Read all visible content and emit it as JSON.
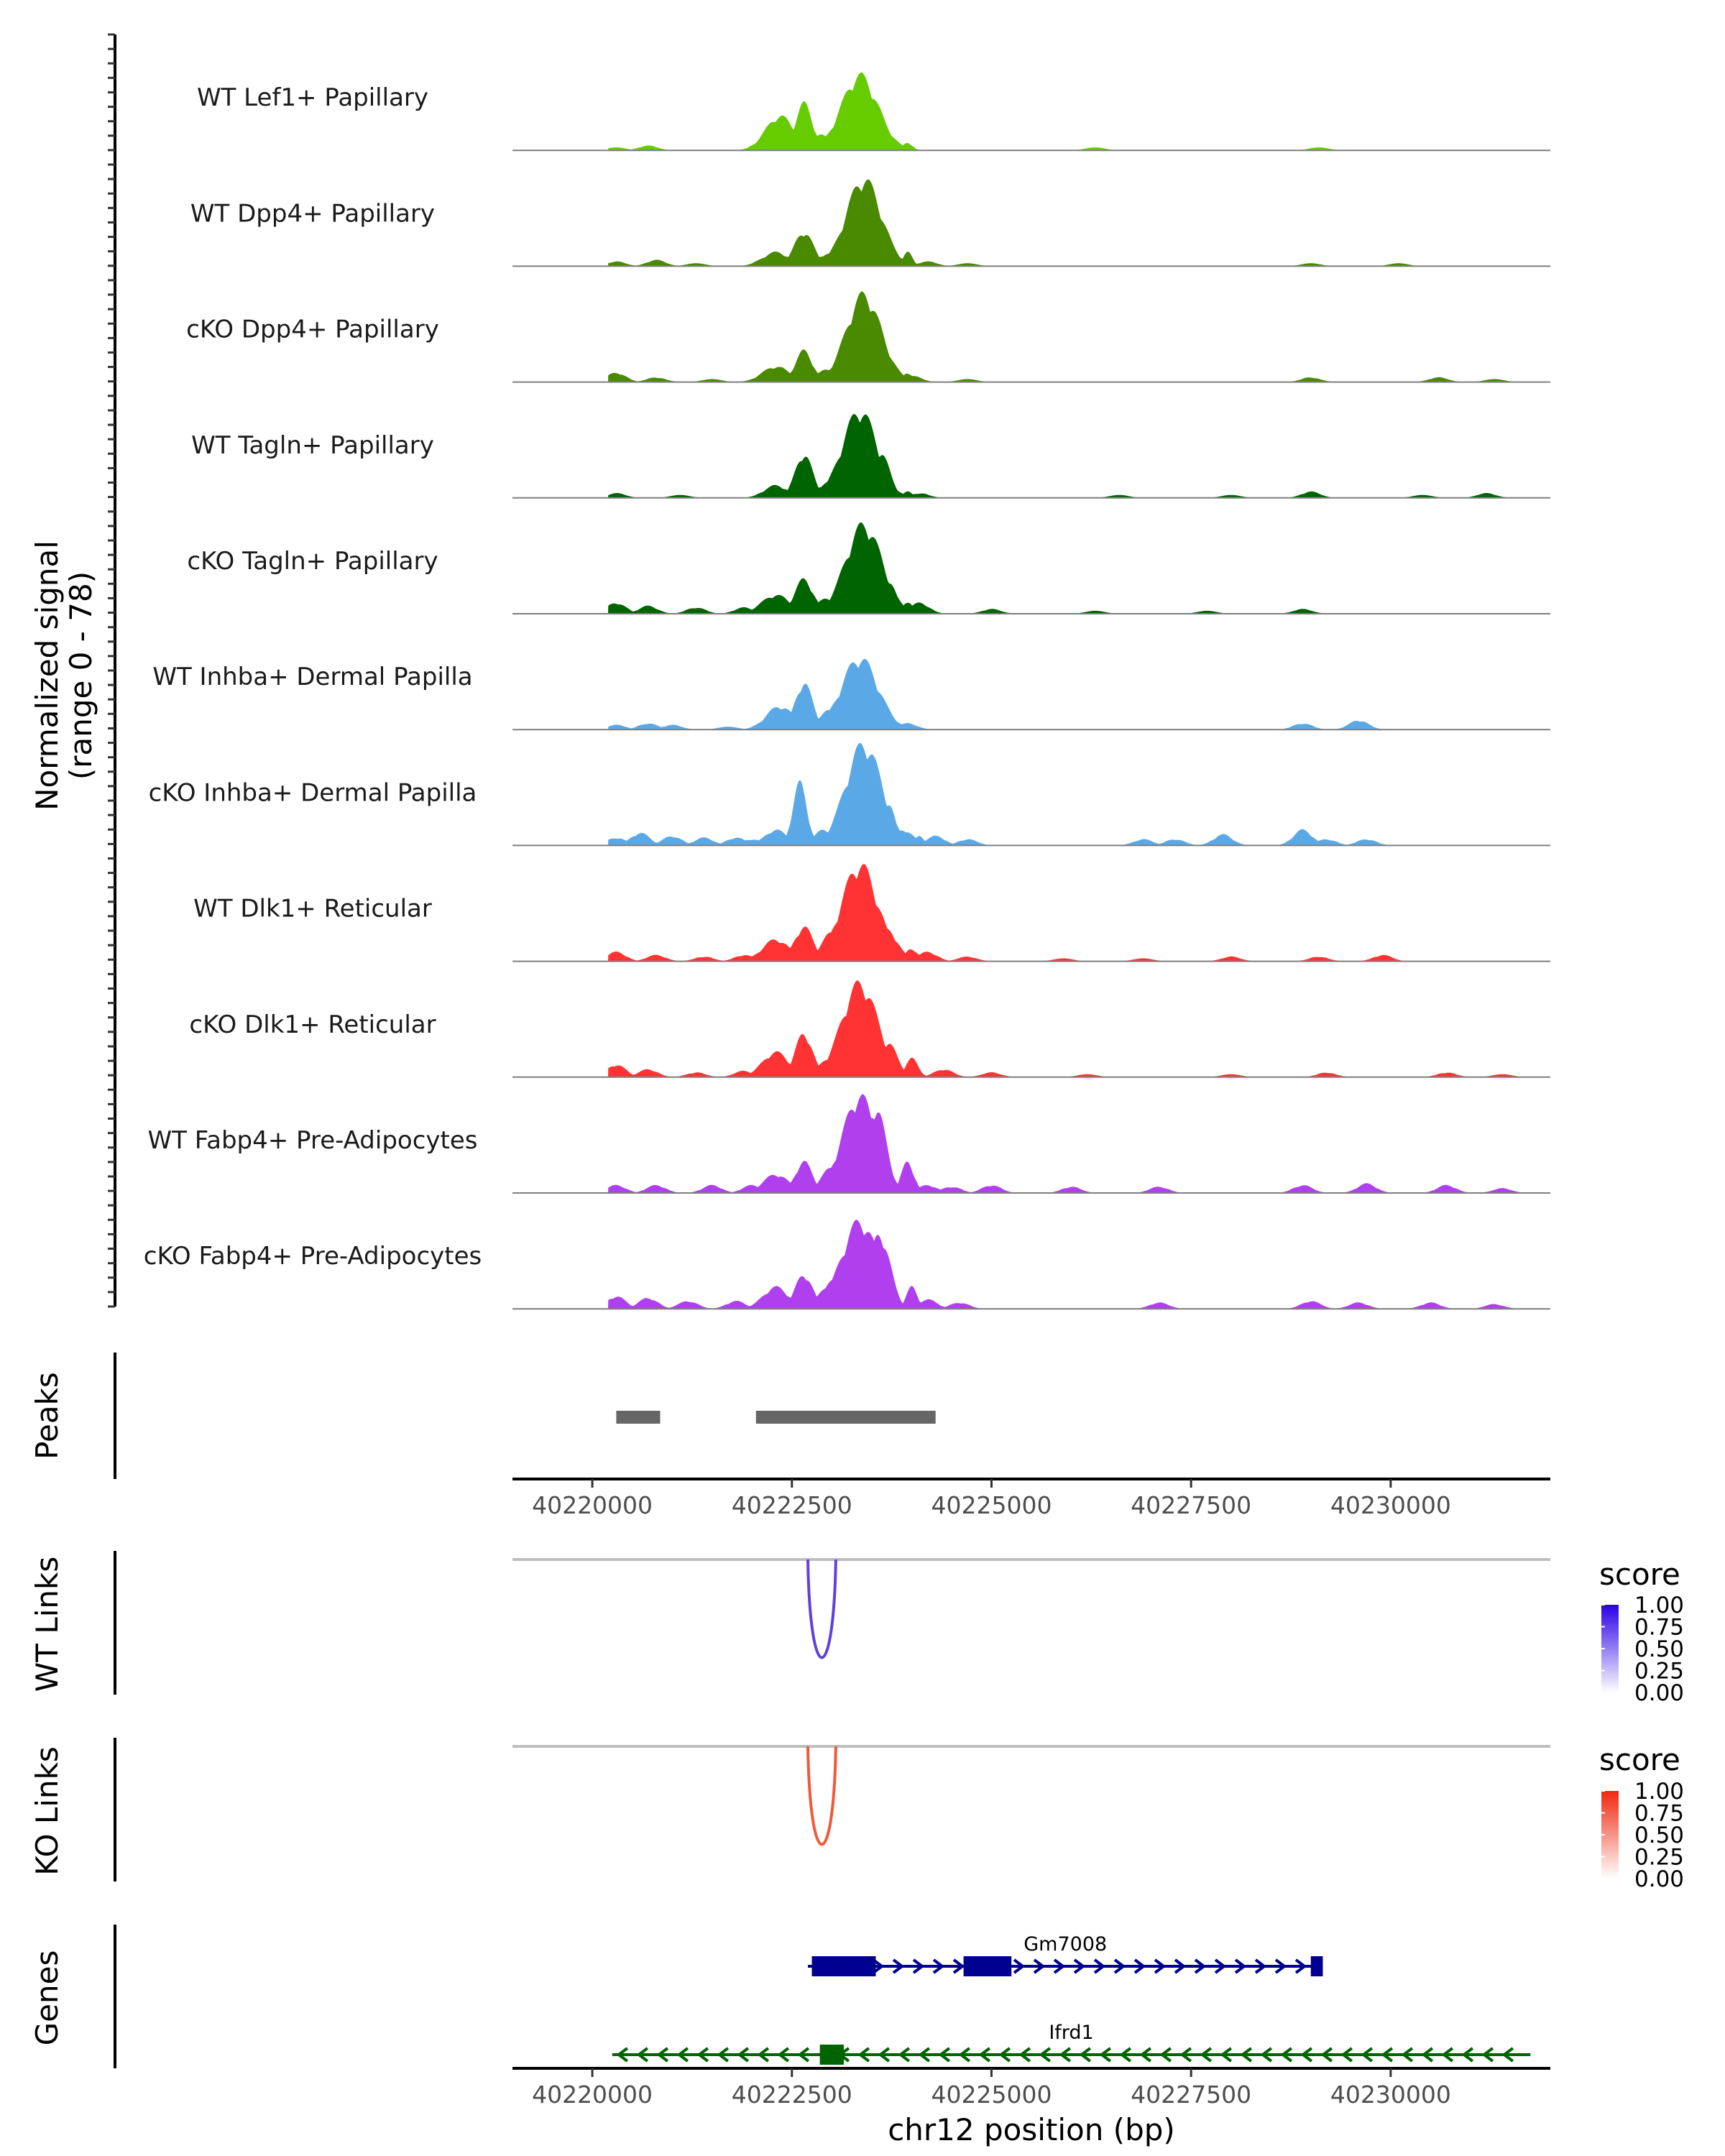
{
  "chart_data": {
    "type": "area",
    "title": "",
    "chromosome": "chr12",
    "xlabel": "chr12 position (bp)",
    "xlim": [
      40219000,
      40232000
    ],
    "x_ticks": [
      40220000,
      40222500,
      40225000,
      40227500,
      40230000
    ],
    "x_tick_labels": [
      "40220000",
      "40222500",
      "40225000",
      "40227500",
      "40230000"
    ],
    "signal": {
      "ylabel_line1": "Normalized signal",
      "ylabel_line2": "(range 0 - 78)",
      "ylim": [
        0,
        78
      ],
      "tracks": [
        {
          "name": "WT Lef1+ Papillary",
          "color": "#66CC00",
          "baseline": [
            [
              40220300,
              2
            ],
            [
              40220700,
              3
            ],
            [
              40226300,
              2
            ],
            [
              40229100,
              2
            ]
          ],
          "peaks": [
            [
              40222350,
              180,
              22
            ],
            [
              40222650,
              110,
              30
            ],
            [
              40222850,
              130,
              10
            ],
            [
              40223350,
              230,
              48
            ],
            [
              40223950,
              60,
              5
            ]
          ]
        },
        {
          "name": "WT Dpp4+ Papillary",
          "color": "#4A8A00",
          "baseline": [
            [
              40220300,
              3
            ],
            [
              40220800,
              4
            ],
            [
              40221300,
              2
            ],
            [
              40224200,
              3
            ],
            [
              40224700,
              2
            ],
            [
              40229000,
              2
            ],
            [
              40230100,
              2
            ]
          ],
          "peaks": [
            [
              40222300,
              170,
              9
            ],
            [
              40222650,
              120,
              22
            ],
            [
              40222950,
              140,
              8
            ],
            [
              40223400,
              220,
              56
            ],
            [
              40223650,
              100,
              22
            ],
            [
              40223950,
              60,
              9
            ]
          ]
        },
        {
          "name": "cKO Dpp4+ Papillary",
          "color": "#4A8A00",
          "baseline": [
            [
              40220300,
              6
            ],
            [
              40220800,
              3
            ],
            [
              40221500,
              2
            ],
            [
              40224000,
              4
            ],
            [
              40224700,
              2
            ],
            [
              40229000,
              3
            ],
            [
              40230600,
              3
            ],
            [
              40231300,
              2
            ]
          ],
          "peaks": [
            [
              40222300,
              170,
              10
            ],
            [
              40222650,
              110,
              20
            ],
            [
              40222950,
              140,
              8
            ],
            [
              40223400,
              220,
              56
            ],
            [
              40223650,
              100,
              24
            ],
            [
              40223950,
              60,
              6
            ]
          ]
        },
        {
          "name": "WT Tagln+ Papillary",
          "color": "#006400",
          "baseline": [
            [
              40220300,
              3
            ],
            [
              40221100,
              2
            ],
            [
              40224100,
              3
            ],
            [
              40226600,
              2
            ],
            [
              40228000,
              2
            ],
            [
              40229000,
              4
            ],
            [
              40230400,
              2
            ],
            [
              40231200,
              3
            ]
          ],
          "peaks": [
            [
              40222300,
              150,
              8
            ],
            [
              40222650,
              110,
              28
            ],
            [
              40222950,
              130,
              10
            ],
            [
              40223350,
              220,
              56
            ],
            [
              40223600,
              120,
              30
            ],
            [
              40223950,
              60,
              4
            ]
          ]
        },
        {
          "name": "cKO Tagln+ Papillary",
          "color": "#006400",
          "baseline": [
            [
              40220300,
              7
            ],
            [
              40220700,
              5
            ],
            [
              40221300,
              4
            ],
            [
              40221900,
              4
            ],
            [
              40224100,
              7
            ],
            [
              40225000,
              3
            ],
            [
              40226300,
              2
            ],
            [
              40227700,
              2
            ],
            [
              40228900,
              3
            ]
          ],
          "peaks": [
            [
              40222300,
              180,
              12
            ],
            [
              40222650,
              120,
              22
            ],
            [
              40222950,
              140,
              10
            ],
            [
              40223400,
              230,
              57
            ],
            [
              40223700,
              100,
              22
            ],
            [
              40223950,
              60,
              8
            ]
          ]
        },
        {
          "name": "WT Inhba+ Dermal Papilla",
          "color": "#5AA9E6",
          "baseline": [
            [
              40220300,
              3
            ],
            [
              40220700,
              4
            ],
            [
              40221000,
              3
            ],
            [
              40221700,
              2
            ],
            [
              40223950,
              4
            ],
            [
              40228900,
              4
            ],
            [
              40229600,
              6
            ]
          ],
          "peaks": [
            [
              40222350,
              170,
              15
            ],
            [
              40222650,
              110,
              30
            ],
            [
              40222950,
              130,
              12
            ],
            [
              40223350,
              230,
              46
            ],
            [
              40223600,
              120,
              18
            ]
          ]
        },
        {
          "name": "cKO Inhba+ Dermal Papilla",
          "color": "#5AA9E6",
          "baseline": [
            [
              40220300,
              5
            ],
            [
              40220600,
              8
            ],
            [
              40221000,
              6
            ],
            [
              40221400,
              5
            ],
            [
              40221800,
              5
            ],
            [
              40222000,
              4
            ],
            [
              40223900,
              10
            ],
            [
              40224300,
              6
            ],
            [
              40224700,
              4
            ],
            [
              40226900,
              4
            ],
            [
              40227300,
              4
            ],
            [
              40227900,
              7
            ],
            [
              40228900,
              10
            ],
            [
              40229200,
              4
            ],
            [
              40229700,
              4
            ]
          ],
          "peaks": [
            [
              40222300,
              140,
              10
            ],
            [
              40222600,
              90,
              40
            ],
            [
              40222900,
              120,
              10
            ],
            [
              40223400,
              230,
              65
            ],
            [
              40223700,
              90,
              28
            ],
            [
              40224100,
              60,
              6
            ]
          ]
        },
        {
          "name": "WT Dlk1+ Reticular",
          "color": "#FF3333",
          "baseline": [
            [
              40220300,
              6
            ],
            [
              40220800,
              4
            ],
            [
              40221400,
              3
            ],
            [
              40221900,
              4
            ],
            [
              40224200,
              6
            ],
            [
              40224700,
              3
            ],
            [
              40225900,
              2
            ],
            [
              40226900,
              2
            ],
            [
              40228000,
              3
            ],
            [
              40229100,
              3
            ],
            [
              40229900,
              4
            ]
          ],
          "peaks": [
            [
              40222300,
              170,
              14
            ],
            [
              40222650,
              120,
              22
            ],
            [
              40223000,
              140,
              18
            ],
            [
              40223350,
              230,
              62
            ],
            [
              40223700,
              130,
              20
            ],
            [
              40224000,
              80,
              8
            ]
          ]
        },
        {
          "name": "cKO Dlk1+ Reticular",
          "color": "#FF3333",
          "baseline": [
            [
              40220300,
              8
            ],
            [
              40220700,
              5
            ],
            [
              40221300,
              3
            ],
            [
              40221900,
              4
            ],
            [
              40224400,
              5
            ],
            [
              40225000,
              3
            ],
            [
              40226200,
              2
            ],
            [
              40228000,
              2
            ],
            [
              40229200,
              3
            ],
            [
              40230700,
              3
            ],
            [
              40231400,
              2
            ]
          ],
          "peaks": [
            [
              40222300,
              170,
              16
            ],
            [
              40222650,
              110,
              28
            ],
            [
              40223000,
              140,
              14
            ],
            [
              40223350,
              230,
              60
            ],
            [
              40223700,
              120,
              22
            ],
            [
              40224000,
              80,
              12
            ]
          ]
        },
        {
          "name": "WT Fabp4+ Pre-Adipocytes",
          "color": "#B040EE",
          "baseline": [
            [
              40220300,
              5
            ],
            [
              40220800,
              5
            ],
            [
              40221500,
              5
            ],
            [
              40222000,
              5
            ],
            [
              40224200,
              5
            ],
            [
              40224500,
              4
            ],
            [
              40225000,
              5
            ],
            [
              40226000,
              4
            ],
            [
              40227100,
              4
            ],
            [
              40228900,
              5
            ],
            [
              40229700,
              6
            ],
            [
              40230700,
              5
            ],
            [
              40231400,
              3
            ]
          ],
          "peaks": [
            [
              40222300,
              160,
              12
            ],
            [
              40222650,
              110,
              20
            ],
            [
              40223000,
              140,
              16
            ],
            [
              40223350,
              220,
              62
            ],
            [
              40223550,
              130,
              55
            ],
            [
              40223950,
              80,
              20
            ]
          ]
        },
        {
          "name": "cKO Fabp4+ Pre-Adipocytes",
          "color": "#B040EE",
          "baseline": [
            [
              40220300,
              8
            ],
            [
              40220700,
              7
            ],
            [
              40221200,
              5
            ],
            [
              40221800,
              5
            ],
            [
              40224200,
              6
            ],
            [
              40224600,
              4
            ],
            [
              40227100,
              4
            ],
            [
              40229000,
              5
            ],
            [
              40229600,
              4
            ],
            [
              40230500,
              4
            ],
            [
              40231300,
              3
            ]
          ],
          "peaks": [
            [
              40222300,
              160,
              14
            ],
            [
              40222650,
              110,
              22
            ],
            [
              40223000,
              140,
              18
            ],
            [
              40223350,
              230,
              56
            ],
            [
              40223600,
              130,
              48
            ],
            [
              40224000,
              70,
              14
            ]
          ]
        }
      ]
    },
    "peaks": {
      "label": "Peaks",
      "ranges": [
        [
          40220300,
          40220850
        ],
        [
          40222050,
          40224300
        ]
      ],
      "color": "#666666"
    },
    "wt_links": {
      "label": "WT Links",
      "legend_title": "score",
      "legend_ticks": [
        "1.00",
        "0.75",
        "0.50",
        "0.25",
        "0.00"
      ],
      "color_low": "#FFFFFF",
      "color_high": "#2A00E6",
      "link_color": "#6040E0",
      "links": [
        {
          "start": 40222700,
          "end": 40223050,
          "score": 0.85
        }
      ]
    },
    "ko_links": {
      "label": "KO Links",
      "legend_title": "score",
      "legend_ticks": [
        "1.00",
        "0.75",
        "0.50",
        "0.25",
        "0.00"
      ],
      "color_low": "#FFFFFF",
      "color_high": "#F02810",
      "link_color": "#F05A3A",
      "links": [
        {
          "start": 40222700,
          "end": 40223050,
          "score": 0.85
        }
      ]
    },
    "genes": {
      "label": "Genes",
      "items": [
        {
          "name": "Gm7008",
          "strand": "+",
          "start": 40222700,
          "end": 40229150,
          "color": "#000090",
          "exons": [
            [
              40222750,
              40223550
            ],
            [
              40224650,
              40225250
            ],
            [
              40229000,
              40229150
            ]
          ]
        },
        {
          "name": "Ifrd1",
          "strand": "-",
          "start": 40220250,
          "end": 40231750,
          "color": "#006400",
          "exons": [
            [
              40222850,
              40223150
            ]
          ]
        }
      ]
    }
  }
}
